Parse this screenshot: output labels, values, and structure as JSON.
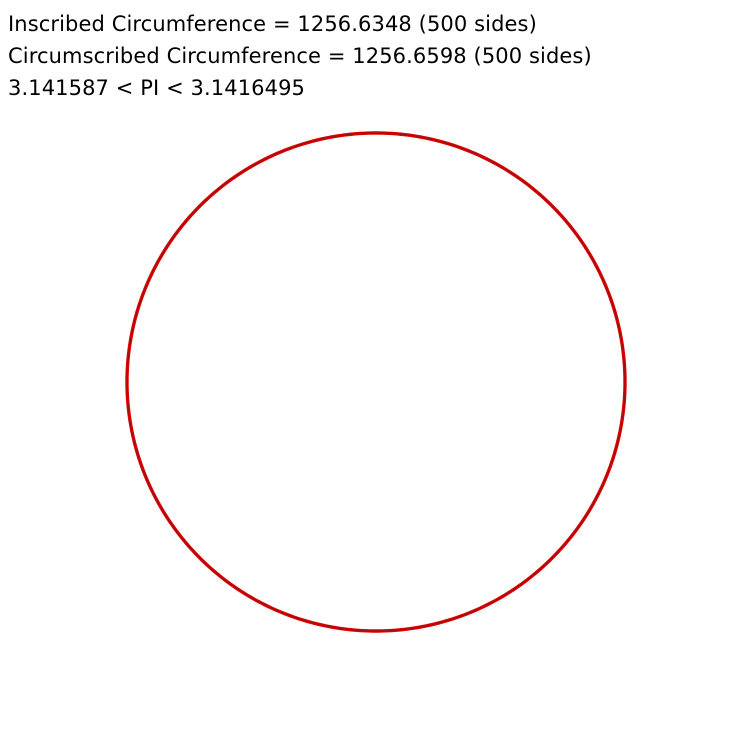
{
  "readout": {
    "inscribed": "Inscribed Circumference = 1256.6348 (500 sides)",
    "circumscribed": "Circumscribed Circumference = 1256.6598 (500 sides)",
    "pi_bounds": "3.141587 < PI < 3.1416495"
  },
  "figure": {
    "sides": 500,
    "stroke_color": "#e00000",
    "inner_stroke_color": "#6b1a1a"
  }
}
